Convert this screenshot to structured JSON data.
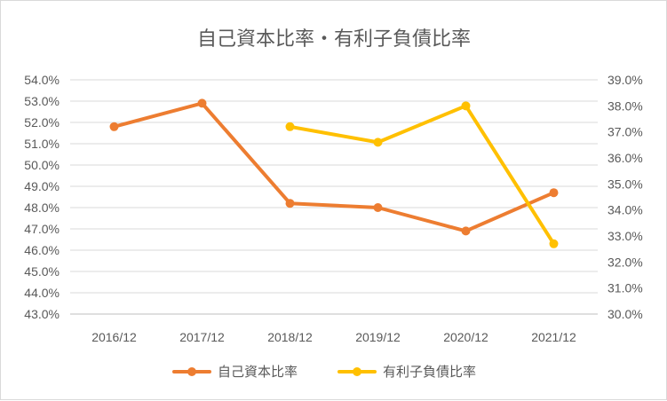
{
  "chart_data": {
    "type": "line",
    "title": "自己資本比率・有利子負債比率",
    "categories": [
      "2016/12",
      "2017/12",
      "2018/12",
      "2019/12",
      "2020/12",
      "2021/12"
    ],
    "y_left": {
      "min": 43.0,
      "max": 54.0,
      "step": 1.0,
      "tick_labels": [
        "54.0%",
        "53.0%",
        "52.0%",
        "51.0%",
        "50.0%",
        "49.0%",
        "48.0%",
        "47.0%",
        "46.0%",
        "45.0%",
        "44.0%",
        "43.0%"
      ]
    },
    "y_right": {
      "min": 30.0,
      "max": 39.0,
      "step": 1.0,
      "tick_labels": [
        "39.0%",
        "38.0%",
        "37.0%",
        "36.0%",
        "35.0%",
        "34.0%",
        "33.0%",
        "32.0%",
        "31.0%",
        "30.0%"
      ]
    },
    "series": [
      {
        "name": "自己資本比率",
        "axis": "left",
        "color": "#ed7d31",
        "values": [
          51.8,
          52.9,
          48.2,
          48.0,
          46.9,
          48.7
        ]
      },
      {
        "name": "有利子負債比率",
        "axis": "right",
        "color": "#ffc000",
        "values": [
          null,
          null,
          37.2,
          36.6,
          38.0,
          32.7
        ]
      }
    ],
    "grid": true,
    "legend_position": "bottom"
  }
}
